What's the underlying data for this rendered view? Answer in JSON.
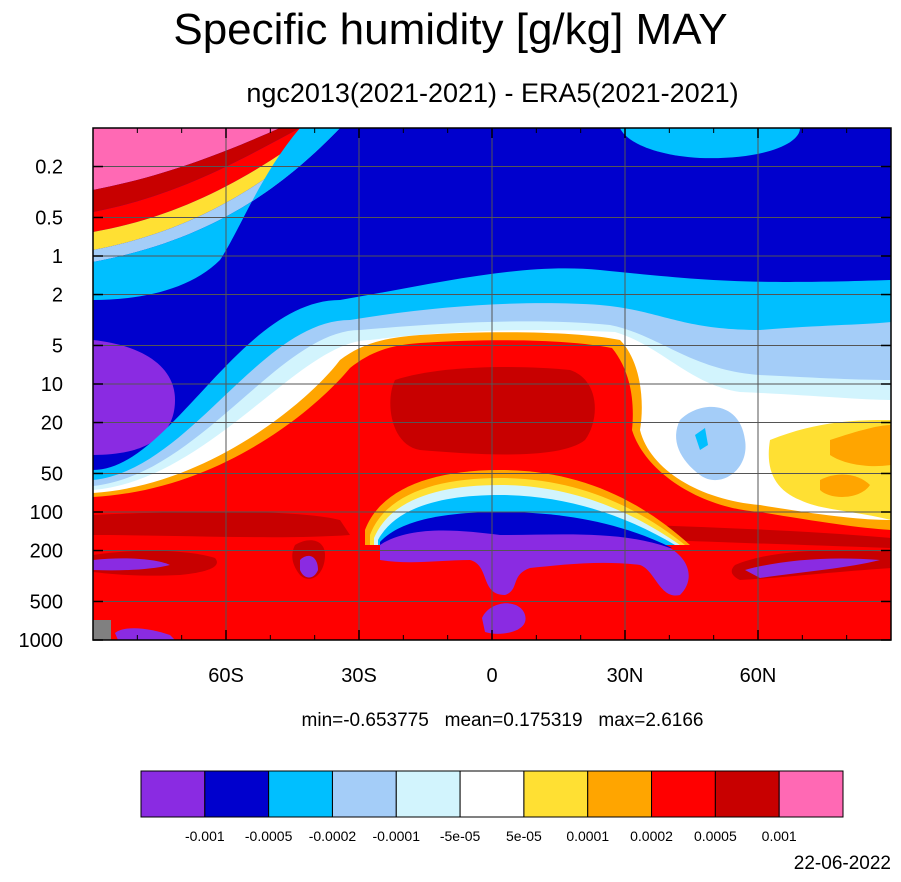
{
  "title": "Specific humidity [g/kg] MAY",
  "subtitle": "ngc2013(2021-2021) - ERA5(2021-2021)",
  "stats": {
    "min_label": "min=-0.653775",
    "mean_label": "mean=0.175319",
    "max_label": "max=2.6166"
  },
  "date": "22-06-2022",
  "chart_data": {
    "type": "contour",
    "x_ticks": [
      {
        "value": -60,
        "label": "60S"
      },
      {
        "value": -30,
        "label": "30S"
      },
      {
        "value": 0,
        "label": "0"
      },
      {
        "value": 30,
        "label": "30N"
      },
      {
        "value": 60,
        "label": "60N"
      }
    ],
    "xlim": [
      -90,
      90
    ],
    "y_ticks": [
      {
        "value": 0.2,
        "label": "0.2"
      },
      {
        "value": 0.5,
        "label": "0.5"
      },
      {
        "value": 1,
        "label": "1"
      },
      {
        "value": 2,
        "label": "2"
      },
      {
        "value": 5,
        "label": "5"
      },
      {
        "value": 10,
        "label": "10"
      },
      {
        "value": 20,
        "label": "20"
      },
      {
        "value": 50,
        "label": "50"
      },
      {
        "value": 100,
        "label": "100"
      },
      {
        "value": 200,
        "label": "200"
      },
      {
        "value": 500,
        "label": "500"
      },
      {
        "value": 1000,
        "label": "1000"
      }
    ],
    "ylim": [
      0.1,
      1000
    ],
    "y_scale": "log",
    "y_inverted": true,
    "grid": true,
    "colorbar": {
      "colors": [
        "#8a2be2",
        "#0000cd",
        "#00bfff",
        "#a4cdf8",
        "#d2f4fd",
        "#ffffff",
        "#ffe033",
        "#ffa500",
        "#ff0000",
        "#c80000",
        "#ff69b4"
      ],
      "labels": [
        "-0.001",
        "-0.0005",
        "-0.0002",
        "-0.0001",
        "-5e-05",
        "5e-05",
        "0.0001",
        "0.0002",
        "0.0005",
        "0.001"
      ]
    }
  }
}
